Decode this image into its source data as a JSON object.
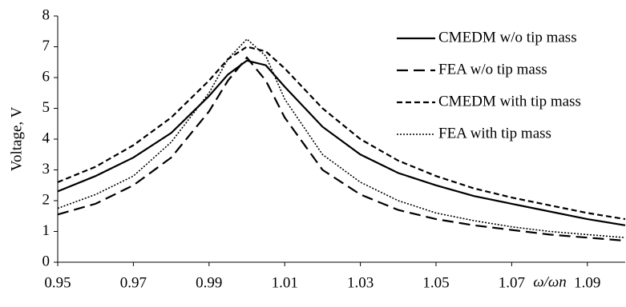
{
  "chart_data": {
    "type": "line",
    "ylabel": "Voltage, V",
    "xlabel": "ω/ωn",
    "x": [
      0.95,
      0.96,
      0.97,
      0.98,
      0.99,
      0.995,
      1.0,
      1.005,
      1.01,
      1.02,
      1.03,
      1.04,
      1.05,
      1.06,
      1.07,
      1.08,
      1.09,
      1.1
    ],
    "series": [
      {
        "name": "CMEDM w/o tip mass",
        "color": "#000000",
        "dash": "solid",
        "values": [
          2.3,
          2.8,
          3.4,
          4.2,
          5.4,
          6.1,
          6.55,
          6.4,
          5.7,
          4.4,
          3.5,
          2.9,
          2.5,
          2.15,
          1.9,
          1.65,
          1.4,
          1.2
        ]
      },
      {
        "name": "FEA w/o tip mass",
        "color": "#000000",
        "dash": "long",
        "values": [
          1.55,
          1.9,
          2.5,
          3.4,
          4.9,
          5.9,
          6.65,
          5.9,
          4.7,
          3.0,
          2.2,
          1.7,
          1.4,
          1.2,
          1.05,
          0.9,
          0.8,
          0.7
        ]
      },
      {
        "name": "CMEDM with tip mass",
        "color": "#000000",
        "dash": "short",
        "values": [
          2.6,
          3.1,
          3.8,
          4.7,
          5.9,
          6.6,
          7.0,
          6.85,
          6.3,
          5.0,
          4.0,
          3.3,
          2.8,
          2.4,
          2.1,
          1.85,
          1.6,
          1.4
        ]
      },
      {
        "name": "FEA with tip mass",
        "color": "#000000",
        "dash": "dotted",
        "values": [
          1.75,
          2.2,
          2.8,
          3.9,
          5.5,
          6.6,
          7.25,
          6.7,
          5.3,
          3.5,
          2.6,
          2.0,
          1.6,
          1.35,
          1.15,
          1.0,
          0.9,
          0.8
        ]
      }
    ],
    "xlim": [
      0.95,
      1.1
    ],
    "xticks": [
      0.95,
      0.97,
      0.99,
      1.01,
      1.03,
      1.05,
      1.07,
      1.09
    ],
    "ylim": [
      0,
      8
    ],
    "yticks": [
      0,
      1,
      2,
      3,
      4,
      5,
      6,
      7,
      8
    ],
    "grid": false,
    "legend": "upper right"
  }
}
